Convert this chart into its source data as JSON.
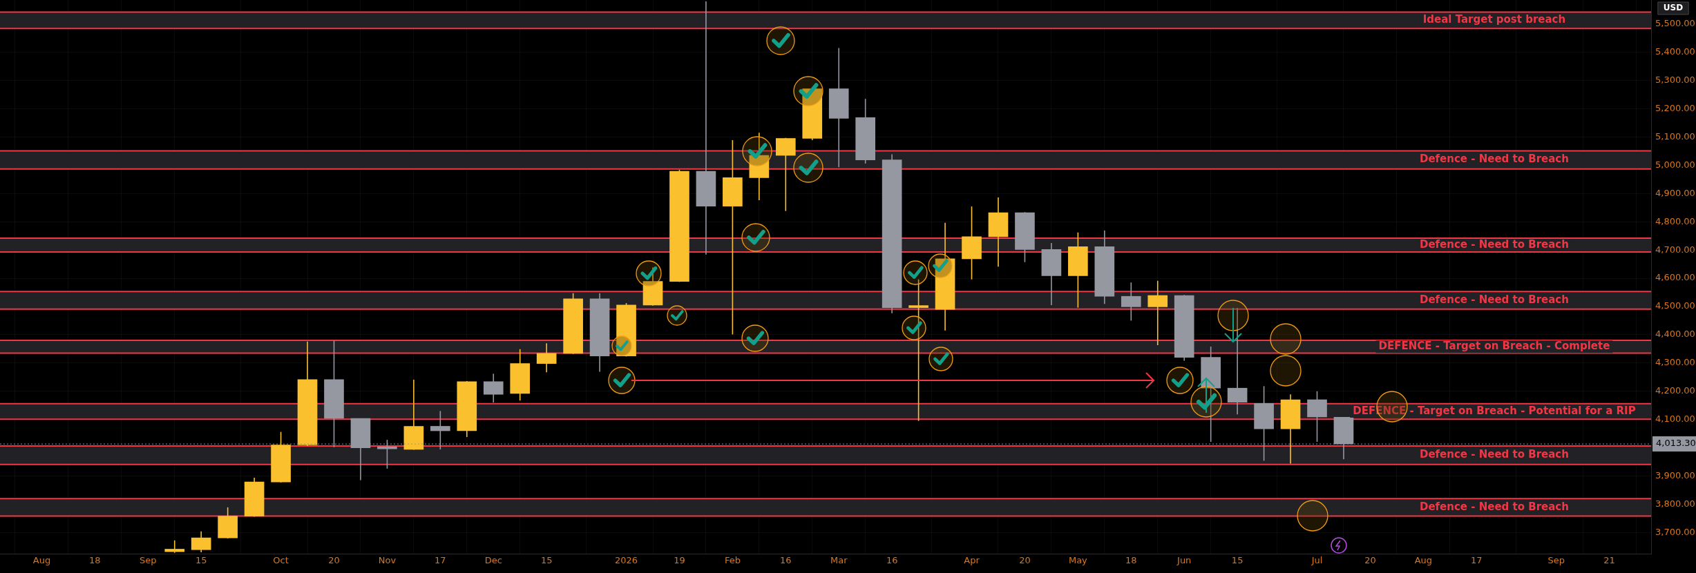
{
  "chart_data": {
    "type": "candlestick",
    "x": [
      "2025-09-08",
      "2025-09-15",
      "2025-09-22",
      "2025-09-29",
      "2025-10-06",
      "2025-10-13",
      "2025-10-20",
      "2025-10-27",
      "2025-11-03",
      "2025-11-10",
      "2025-11-17",
      "2025-11-24",
      "2025-12-01",
      "2025-12-08",
      "2025-12-15",
      "2025-12-22",
      "2025-12-29",
      "2026-01-05",
      "2026-01-12",
      "2026-01-19",
      "2026-01-26",
      "2026-02-02",
      "2026-02-09",
      "2026-02-16",
      "2026-02-23",
      "2026-03-02",
      "2026-03-09",
      "2026-03-16",
      "2026-03-23",
      "2026-03-30",
      "2026-04-06",
      "2026-04-13",
      "2026-04-20",
      "2026-04-27",
      "2026-05-04",
      "2026-05-11",
      "2026-05-18",
      "2026-05-25",
      "2026-06-01",
      "2026-06-08",
      "2026-06-15",
      "2026-06-22",
      "2026-06-29",
      "2026-07-06",
      "2026-07-13"
    ],
    "ohlc": [
      [
        3632,
        3672,
        3628,
        3641
      ],
      [
        3639,
        3704,
        3630,
        3681
      ],
      [
        3681,
        3789,
        3679,
        3758
      ],
      [
        3758,
        3894,
        3756,
        3879
      ],
      [
        3879,
        4056,
        3877,
        4010
      ],
      [
        4010,
        4376,
        4006,
        4241
      ],
      [
        4241,
        4379,
        4002,
        4104
      ],
      [
        4104,
        4104,
        3885,
        4000
      ],
      [
        4001,
        4028,
        3926,
        3996
      ],
      [
        3994,
        4241,
        3993,
        4076
      ],
      [
        4076,
        4130,
        3994,
        4060
      ],
      [
        4060,
        4236,
        4038,
        4234
      ],
      [
        4234,
        4262,
        4160,
        4189
      ],
      [
        4192,
        4349,
        4167,
        4298
      ],
      [
        4298,
        4370,
        4267,
        4334
      ],
      [
        4334,
        4547,
        4332,
        4527
      ],
      [
        4527,
        4547,
        4269,
        4325
      ],
      [
        4325,
        4512,
        4323,
        4505
      ],
      [
        4505,
        4638,
        4503,
        4589
      ],
      [
        4589,
        4984,
        4587,
        4979
      ],
      [
        4979,
        5580,
        4684,
        4855
      ],
      [
        4855,
        5089,
        4401,
        4956
      ],
      [
        4956,
        5115,
        4876,
        5035
      ],
      [
        5035,
        5097,
        4838,
        5095
      ],
      [
        5095,
        5273,
        5089,
        5271
      ],
      [
        5271,
        5415,
        4993,
        5166
      ],
      [
        5169,
        5235,
        5006,
        5019
      ],
      [
        5019,
        5039,
        4476,
        4496
      ],
      [
        4496,
        4596,
        4095,
        4497
      ],
      [
        4490,
        4796,
        4415,
        4669
      ],
      [
        4669,
        4854,
        4596,
        4747
      ],
      [
        4747,
        4886,
        4641,
        4832
      ],
      [
        4832,
        4834,
        4657,
        4702
      ],
      [
        4702,
        4725,
        4505,
        4609
      ],
      [
        4609,
        4762,
        4496,
        4712
      ],
      [
        4712,
        4769,
        4509,
        4536
      ],
      [
        4536,
        4585,
        4450,
        4499
      ],
      [
        4499,
        4591,
        4363,
        4539
      ],
      [
        4539,
        4541,
        4308,
        4320
      ],
      [
        4320,
        4358,
        4021,
        4211
      ],
      [
        4211,
        4495,
        4118,
        4161
      ],
      [
        4157,
        4218,
        3954,
        4067
      ],
      [
        4067,
        4189,
        3944,
        4170
      ],
      [
        4170,
        4200,
        4021,
        4109
      ],
      [
        4108,
        4109,
        3959,
        4013.3
      ]
    ],
    "colors": [
      "#fbc02d",
      "#fbc02d",
      "#fbc02d",
      "#fbc02d",
      "#fbc02d",
      "#fbc02d",
      "#9598a1",
      "#9598a1",
      "#9598a1",
      "#fbc02d",
      "#9598a1",
      "#fbc02d",
      "#9598a1",
      "#fbc02d",
      "#fbc02d",
      "#fbc02d",
      "#9598a1",
      "#fbc02d",
      "#fbc02d",
      "#fbc02d",
      "#9598a1",
      "#fbc02d",
      "#fbc02d",
      "#fbc02d",
      "#fbc02d",
      "#9598a1",
      "#9598a1",
      "#9598a1",
      "#fbc02d",
      "#fbc02d",
      "#fbc02d",
      "#fbc02d",
      "#9598a1",
      "#9598a1",
      "#fbc02d",
      "#9598a1",
      "#9598a1",
      "#fbc02d",
      "#9598a1",
      "#9598a1",
      "#9598a1",
      "#9598a1",
      "#fbc02d",
      "#9598a1",
      "#9598a1"
    ],
    "xlim": [
      "2025-07-24",
      "2026-10-02"
    ],
    "xticks": [
      {
        "value": "2025-08-04",
        "label": "Aug"
      },
      {
        "value": "2025-08-18",
        "label": "18"
      },
      {
        "value": "2025-09-01",
        "label": "Sep"
      },
      {
        "value": "2025-09-15",
        "label": "15"
      },
      {
        "value": "2025-10-06",
        "label": "Oct"
      },
      {
        "value": "2025-10-20",
        "label": "20"
      },
      {
        "value": "2025-11-03",
        "label": "Nov"
      },
      {
        "value": "2025-11-17",
        "label": "17"
      },
      {
        "value": "2025-12-01",
        "label": "Dec"
      },
      {
        "value": "2025-12-15",
        "label": "15"
      },
      {
        "value": "2026-01-05",
        "label": "2026"
      },
      {
        "value": "2026-01-19",
        "label": "19"
      },
      {
        "value": "2026-02-02",
        "label": "Feb"
      },
      {
        "value": "2026-02-16",
        "label": "16"
      },
      {
        "value": "2026-03-02",
        "label": "Mar"
      },
      {
        "value": "2026-03-16",
        "label": "16"
      },
      {
        "value": "2026-04-06",
        "label": "Apr"
      },
      {
        "value": "2026-04-20",
        "label": "20"
      },
      {
        "value": "2026-05-04",
        "label": "May"
      },
      {
        "value": "2026-05-18",
        "label": "18"
      },
      {
        "value": "2026-06-01",
        "label": "Jun"
      },
      {
        "value": "2026-06-15",
        "label": "15"
      },
      {
        "value": "2026-07-06",
        "label": "Jul"
      },
      {
        "value": "2026-07-20",
        "label": "20"
      },
      {
        "value": "2026-08-03",
        "label": "Aug"
      },
      {
        "value": "2026-08-17",
        "label": "17"
      },
      {
        "value": "2026-09-07",
        "label": "Sep"
      },
      {
        "value": "2026-09-21",
        "label": "21"
      }
    ],
    "ylim": [
      3625,
      5585
    ],
    "yticks": [
      {
        "value": 3700,
        "label": "3,700.00"
      },
      {
        "value": 3800,
        "label": "3,800.00"
      },
      {
        "value": 3900,
        "label": "3,900.00"
      },
      {
        "value": 4000,
        "label": null
      },
      {
        "value": 4100,
        "label": "4,100.00"
      },
      {
        "value": 4200,
        "label": "4,200.00"
      },
      {
        "value": 4300,
        "label": "4,300.00"
      },
      {
        "value": 4400,
        "label": "4,400.00"
      },
      {
        "value": 4500,
        "label": "4,500.00"
      },
      {
        "value": 4600,
        "label": "4,600.00"
      },
      {
        "value": 4700,
        "label": "4,700.00"
      },
      {
        "value": 4800,
        "label": "4,800.00"
      },
      {
        "value": 4900,
        "label": "4,900.00"
      },
      {
        "value": 5000,
        "label": "5,000.00"
      },
      {
        "value": 5100,
        "label": "5,100.00"
      },
      {
        "value": 5200,
        "label": "5,200.00"
      },
      {
        "value": 5300,
        "label": "5,300.00"
      },
      {
        "value": 5400,
        "label": "5,400.00"
      },
      {
        "value": 5500,
        "label": "5,500.00"
      }
    ],
    "ylabel": "USD",
    "ref_lines": [
      {
        "axis": "y",
        "value": 4013.3,
        "label": "4,013.30",
        "color": "#9598a1",
        "line_style": "dotted"
      }
    ],
    "bands": [
      {
        "axis": "y",
        "from": 5484,
        "to": 5542,
        "label": "Ideal Target post breach",
        "color": "#222226"
      },
      {
        "axis": "y",
        "from": 4987,
        "to": 5051,
        "label": "Defence - Need to Breach",
        "color": "#222226"
      },
      {
        "axis": "y",
        "from": 4693,
        "to": 4742,
        "label": "Defence - Need to Breach",
        "color": "#222226"
      },
      {
        "axis": "y",
        "from": 4491,
        "to": 4553,
        "label": "Defence - Need to Breach",
        "color": "#222226"
      },
      {
        "axis": "y",
        "from": 4335,
        "to": 4380,
        "label": "DEFENCE - Target on Breach - Complete",
        "color": "#222226"
      },
      {
        "axis": "y",
        "from": 4101,
        "to": 4156,
        "label": "DEFENCE - Target on Breach - Potential for a RIP",
        "color": "#222226"
      },
      {
        "axis": "y",
        "from": 3941,
        "to": 4006,
        "label": "Defence - Need to Breach",
        "color": "#222226"
      },
      {
        "axis": "y",
        "from": 3758,
        "to": 3820,
        "label": "Defence - Need to Breach",
        "color": "#222226"
      }
    ],
    "grid": true,
    "legend": false
  }
}
